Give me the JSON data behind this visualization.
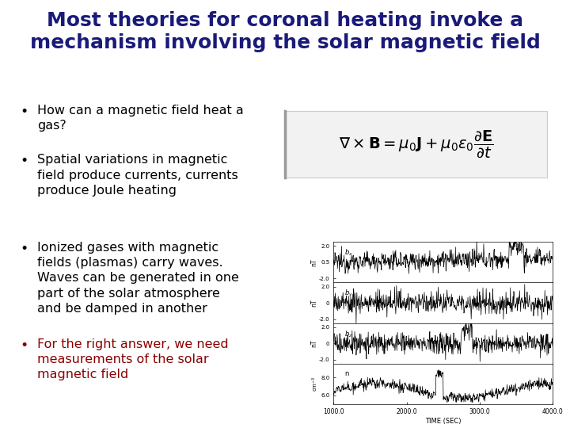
{
  "background_color": "#ffffff",
  "title_line1": "Most theories for coronal heating invoke a",
  "title_line2": "mechanism involving the solar magnetic field",
  "title_color": "#1a1a7a",
  "title_fontsize": 18,
  "bullet_points": [
    "How can a magnetic field heat a\ngas?",
    "Spatial variations in magnetic\nfield produce currents, currents\nproduce Joule heating",
    "Ionized gases with magnetic\nfields (plasmas) carry waves.\nWaves can be generated in one\npart of the solar atmosphere\nand be damped in another",
    "For the right answer, we need\nmeasurements of the solar\nmagnetic field"
  ],
  "bullet_colors": [
    "#000000",
    "#000000",
    "#000000",
    "#8b0000"
  ],
  "bullet_fontsize": 11.5,
  "equation": "$\\nabla \\times \\mathbf{B} = \\mu_0\\mathbf{J} + \\mu_0\\varepsilon_0\\dfrac{\\partial\\mathbf{E}}{\\partial t}$",
  "equation_fontsize": 14,
  "panel_labels": [
    "$b_x$",
    "$b_y$",
    "$b_z$",
    "n"
  ],
  "panel_ylabels": [
    "nT",
    "nT",
    "nT",
    "cm$^{-3}$"
  ],
  "xtick_labels": [
    "1000.0",
    "2000.0",
    "3000.0",
    "4000.0"
  ],
  "xlabel": "TIME (SEC)"
}
